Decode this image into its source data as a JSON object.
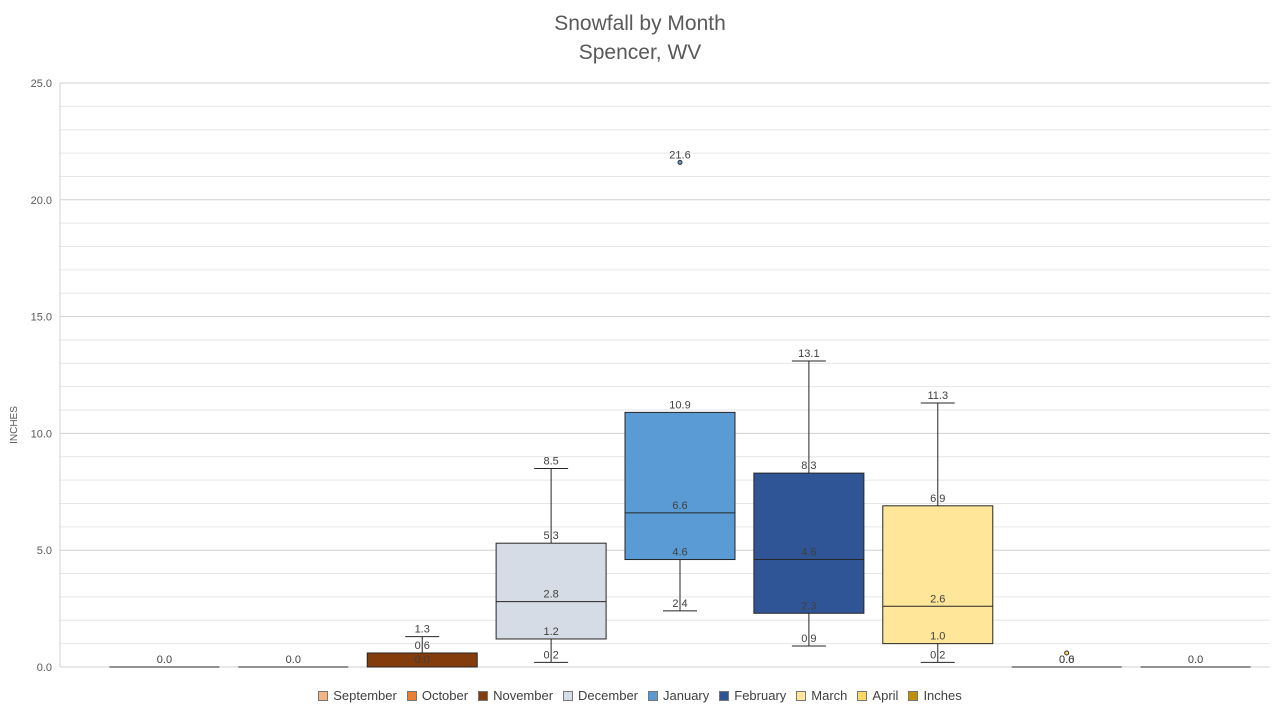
{
  "chart_data": {
    "type": "boxplot",
    "title": "Snowfall by Month",
    "subtitle": "Spencer, WV",
    "ylabel": "INCHES",
    "ylim": [
      0,
      25
    ],
    "yticks": [
      "0.0",
      "5.0",
      "10.0",
      "15.0",
      "20.0",
      "25.0"
    ],
    "categories": [
      "September",
      "October",
      "November",
      "December",
      "January",
      "February",
      "March",
      "April",
      "Inches"
    ],
    "boxes": [
      {
        "name": "September",
        "color": "#f4b183",
        "min": 0.0,
        "q1": 0.0,
        "median": 0.0,
        "q3": 0.0,
        "max": 0.0,
        "labels": [
          "0.0"
        ]
      },
      {
        "name": "October",
        "color": "#ed7d31",
        "min": 0.0,
        "q1": 0.0,
        "median": 0.0,
        "q3": 0.0,
        "max": 0.0,
        "labels": [
          "0.0"
        ]
      },
      {
        "name": "November",
        "color": "#843c0c",
        "min": 0.0,
        "q1": 0.0,
        "median": 0.0,
        "q3": 0.6,
        "max": 1.3,
        "labels": [
          "1.3",
          "0.6",
          "0.0"
        ]
      },
      {
        "name": "December",
        "color": "#d6dce5",
        "min": 0.2,
        "q1": 1.2,
        "median": 2.8,
        "q3": 5.3,
        "max": 8.5,
        "labels": [
          "8.5",
          "5.3",
          "2.8",
          "1.2",
          "0.2"
        ]
      },
      {
        "name": "January",
        "color": "#5b9bd5",
        "min": 2.4,
        "q1": 4.6,
        "median": 6.6,
        "q3": 10.9,
        "max": 10.9,
        "outlier": 21.6,
        "labels": [
          "21.6",
          "10.9",
          "6.6",
          "4.6",
          "2.4"
        ]
      },
      {
        "name": "February",
        "color": "#2f5597",
        "min": 0.9,
        "q1": 2.3,
        "median": 4.6,
        "q3": 8.3,
        "max": 13.1,
        "labels": [
          "13.1",
          "8.3",
          "4.6",
          "2.3",
          "0.9"
        ]
      },
      {
        "name": "March",
        "color": "#ffe699",
        "min": 0.2,
        "q1": 1.0,
        "median": 2.6,
        "q3": 6.9,
        "max": 11.3,
        "labels": [
          "11.3",
          "6.9",
          "2.6",
          "1.0",
          "0.2"
        ]
      },
      {
        "name": "April",
        "color": "#ffd966",
        "min": 0.0,
        "q1": 0.0,
        "median": 0.0,
        "q3": 0.0,
        "max": 0.0,
        "outlier": 0.6,
        "labels": [
          "0.6",
          "0.0"
        ]
      },
      {
        "name": "Inches",
        "color": "#bf9000",
        "min": 0.0,
        "q1": 0.0,
        "median": 0.0,
        "q3": 0.0,
        "max": 0.0,
        "labels": [
          "0.0"
        ]
      }
    ],
    "legend": [
      {
        "label": "September",
        "color": "#f4b183"
      },
      {
        "label": "October",
        "color": "#ed7d31"
      },
      {
        "label": "November",
        "color": "#843c0c"
      },
      {
        "label": "December",
        "color": "#d6dce5"
      },
      {
        "label": "January",
        "color": "#5b9bd5"
      },
      {
        "label": "February",
        "color": "#2f5597"
      },
      {
        "label": "March",
        "color": "#ffe699"
      },
      {
        "label": "April",
        "color": "#ffd966"
      },
      {
        "label": "Inches",
        "color": "#bf9000"
      }
    ],
    "legend_position": "bottom",
    "grid": true
  }
}
